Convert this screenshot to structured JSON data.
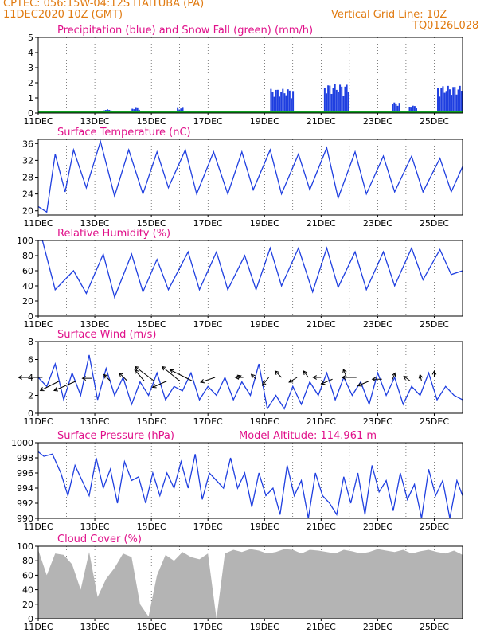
{
  "header": {
    "line1": "CPTEC:   056:15W-04:12S   ITAITUBA (PA)",
    "line2": "11DEC2020 10Z (GMT)",
    "grid_note": "Vertical Grid Line: 10Z",
    "code": "TQ0126L028"
  },
  "colors": {
    "orange": "#e07a10",
    "magenta": "#e0108a",
    "blue": "#1f3fe0",
    "green": "#10a020",
    "gray": "#b4b4b4"
  },
  "chart_data": [
    {
      "type": "bar",
      "title": "Precipitation (blue) and Snow Fall (green) (mm/h)",
      "ylim": [
        0,
        5
      ],
      "yticks": [
        0,
        1,
        2,
        3,
        4,
        5
      ],
      "xticks": [
        "11DEC",
        "13DEC",
        "15DEC",
        "17DEC",
        "19DEC",
        "21DEC",
        "23DEC",
        "25DEC"
      ],
      "series": [
        {
          "name": "Precipitation",
          "color": "blue",
          "bursts": [
            [
              2.3,
              2.6,
              0.25
            ],
            [
              3.3,
              3.6,
              0.35
            ],
            [
              4.9,
              5.1,
              0.35
            ],
            [
              8.2,
              9.0,
              1.6
            ],
            [
              10.1,
              11.0,
              1.9
            ],
            [
              12.5,
              12.8,
              0.7
            ],
            [
              13.1,
              13.4,
              0.5
            ],
            [
              14.1,
              15.0,
              1.8
            ]
          ]
        },
        {
          "name": "Snow Fall",
          "color": "green",
          "value": 0.08
        }
      ]
    },
    {
      "type": "line",
      "title": "Surface Temperature (nC)",
      "ylim": [
        19,
        37
      ],
      "yticks": [
        20,
        24,
        28,
        32,
        36
      ],
      "xticks": [
        "11DEC",
        "13DEC",
        "15DEC",
        "17DEC",
        "19DEC",
        "21DEC",
        "23DEC",
        "25DEC"
      ],
      "x_days": [
        0,
        0.3,
        0.6,
        0.95,
        1.25,
        1.7,
        2.2,
        2.7,
        3.2,
        3.7,
        4.2,
        4.6,
        5.2,
        5.6,
        6.2,
        6.7,
        7.2,
        7.6,
        8.2,
        8.6,
        9.2,
        9.6,
        10.2,
        10.6,
        11.2,
        11.6,
        12.2,
        12.6,
        13.2,
        13.6,
        14.2,
        14.6,
        15
      ],
      "values": [
        21,
        19.7,
        33.5,
        24.5,
        34.5,
        25.5,
        36.5,
        23.5,
        34.5,
        24,
        34,
        25.5,
        34.5,
        24,
        34,
        24,
        34,
        25,
        34.5,
        24,
        33.5,
        25,
        35,
        23,
        34,
        24,
        33,
        24.5,
        33,
        24.5,
        32.5,
        24.5,
        30.5
      ]
    },
    {
      "type": "line",
      "title": "Relative Humidity (%)",
      "ylim": [
        0,
        100
      ],
      "yticks": [
        0,
        20,
        40,
        60,
        80,
        100
      ],
      "xticks": [
        "11DEC",
        "13DEC",
        "15DEC",
        "17DEC",
        "19DEC",
        "21DEC",
        "23DEC",
        "25DEC"
      ],
      "x_days": [
        0,
        0.15,
        0.6,
        1.25,
        1.7,
        2.3,
        2.7,
        3.3,
        3.7,
        4.2,
        4.6,
        5.3,
        5.7,
        6.3,
        6.7,
        7.3,
        7.7,
        8.2,
        8.6,
        9.2,
        9.7,
        10.2,
        10.6,
        11.2,
        11.6,
        12.2,
        12.6,
        13.2,
        13.6,
        14.2,
        14.6,
        15
      ],
      "values": [
        100,
        100,
        35,
        60,
        30,
        82,
        25,
        82,
        32,
        75,
        35,
        85,
        35,
        85,
        35,
        80,
        35,
        90,
        40,
        90,
        32,
        90,
        38,
        85,
        35,
        85,
        40,
        90,
        48,
        88,
        55,
        60
      ]
    },
    {
      "type": "line",
      "title": "Surface Wind (m/s)",
      "ylim": [
        0,
        8
      ],
      "yticks": [
        0,
        2,
        4,
        6,
        8
      ],
      "xticks": [
        "11DEC",
        "13DEC",
        "15DEC",
        "17DEC",
        "19DEC",
        "21DEC",
        "23DEC",
        "25DEC"
      ],
      "x_days": [
        0,
        0.3,
        0.6,
        0.9,
        1.2,
        1.5,
        1.8,
        2.1,
        2.4,
        2.7,
        3.0,
        3.3,
        3.6,
        3.9,
        4.2,
        4.5,
        4.8,
        5.1,
        5.4,
        5.7,
        6.0,
        6.3,
        6.6,
        6.9,
        7.2,
        7.5,
        7.8,
        8.1,
        8.4,
        8.7,
        9.0,
        9.3,
        9.6,
        9.9,
        10.2,
        10.5,
        10.8,
        11.1,
        11.4,
        11.7,
        12.0,
        12.3,
        12.6,
        12.9,
        13.2,
        13.5,
        13.8,
        14.1,
        14.4,
        14.7,
        15
      ],
      "values": [
        4,
        3,
        5.5,
        1.5,
        4.5,
        2,
        6.5,
        1.5,
        5,
        2,
        4,
        1,
        3.5,
        2,
        4.5,
        1.5,
        3,
        2.5,
        4.5,
        1.5,
        3,
        2,
        4,
        1.5,
        3.5,
        2,
        5.5,
        0.5,
        2,
        0.5,
        3,
        1,
        3.5,
        2,
        4.5,
        1.5,
        4,
        2,
        3.5,
        1,
        4.5,
        2,
        4,
        1,
        3,
        2,
        4.5,
        1.5,
        3,
        2,
        1.5
      ],
      "arrows": [
        [
          0.15,
          4,
          -30,
          0
        ],
        [
          0.75,
          3.6,
          -24,
          12
        ],
        [
          1.35,
          3.6,
          -28,
          12
        ],
        [
          1.9,
          3.9,
          -12,
          0
        ],
        [
          2.55,
          3.6,
          -8,
          -8
        ],
        [
          3.15,
          3.6,
          -10,
          -10
        ],
        [
          3.75,
          3.6,
          -12,
          -14
        ],
        [
          4.1,
          3.6,
          -24,
          -18
        ],
        [
          4.55,
          3.6,
          -18,
          8
        ],
        [
          5.0,
          3.6,
          -22,
          -18
        ],
        [
          5.45,
          3.6,
          -28,
          -14
        ],
        [
          6.25,
          4.0,
          -18,
          6
        ],
        [
          7.0,
          4.0,
          6,
          -2
        ],
        [
          7.25,
          4.0,
          -10,
          0
        ],
        [
          7.7,
          3.8,
          -6,
          -6
        ],
        [
          8.15,
          4.0,
          -8,
          10
        ],
        [
          8.6,
          4.0,
          -8,
          -8
        ],
        [
          9.15,
          4.0,
          -10,
          6
        ],
        [
          9.55,
          4.0,
          -6,
          -8
        ],
        [
          10.0,
          4.0,
          -10,
          0
        ],
        [
          10.4,
          3.8,
          -14,
          6
        ],
        [
          10.9,
          4.0,
          -4,
          -10
        ],
        [
          11.25,
          4.0,
          -18,
          0
        ],
        [
          11.7,
          3.6,
          -14,
          6
        ],
        [
          12.15,
          3.8,
          -12,
          0
        ],
        [
          12.5,
          3.6,
          4,
          -10
        ],
        [
          13.15,
          3.6,
          -8,
          -6
        ],
        [
          13.55,
          3.6,
          -2,
          -8
        ],
        [
          14.0,
          4.0,
          0,
          -8
        ]
      ]
    },
    {
      "type": "line",
      "title": "Surface Pressure (hPa)",
      "annotation": "Model Altitude: 114.961  m",
      "ylim": [
        990,
        1000
      ],
      "yticks": [
        990,
        992,
        994,
        996,
        998,
        1000
      ],
      "xticks": [
        "11DEC",
        "13DEC",
        "15DEC",
        "17DEC",
        "19DEC",
        "21DEC",
        "23DEC",
        "25DEC"
      ],
      "x_days": [
        0,
        0.2,
        0.5,
        0.8,
        1.05,
        1.3,
        1.55,
        1.8,
        2.05,
        2.3,
        2.55,
        2.8,
        3.05,
        3.3,
        3.55,
        3.8,
        4.05,
        4.3,
        4.55,
        4.8,
        5.05,
        5.3,
        5.55,
        5.8,
        6.05,
        6.3,
        6.55,
        6.8,
        7.05,
        7.3,
        7.55,
        7.8,
        8.05,
        8.3,
        8.55,
        8.8,
        9.05,
        9.3,
        9.55,
        9.8,
        10.05,
        10.3,
        10.55,
        10.8,
        11.05,
        11.3,
        11.55,
        11.8,
        12.05,
        12.3,
        12.55,
        12.8,
        13.05,
        13.3,
        13.55,
        13.8,
        14.05,
        14.3,
        14.55,
        14.8,
        15
      ],
      "values": [
        998.8,
        998.2,
        998.5,
        996,
        993,
        997,
        995,
        993,
        998,
        994,
        996.5,
        992,
        997.5,
        995,
        995.5,
        992,
        996,
        993,
        996,
        994,
        997.5,
        994,
        998.5,
        992.5,
        996,
        995,
        994,
        998,
        994,
        996,
        991.5,
        996,
        993,
        994,
        990.5,
        997,
        993,
        995,
        990,
        996,
        993,
        992,
        990.5,
        995.5,
        992,
        996,
        990.5,
        997,
        993.5,
        995,
        991,
        996,
        992.5,
        994.5,
        990,
        996.5,
        993,
        995,
        990,
        995,
        993
      ]
    },
    {
      "type": "bar",
      "title": "Cloud Cover (%)",
      "ylim": [
        0,
        100
      ],
      "yticks": [
        0,
        20,
        40,
        60,
        80,
        100
      ],
      "xticks": [
        "11DEC",
        "13DEC",
        "15DEC",
        "17DEC",
        "19DEC",
        "21DEC",
        "23DEC",
        "25DEC"
      ],
      "x_days": [
        0,
        0.3,
        0.6,
        0.9,
        1.2,
        1.5,
        1.8,
        2.1,
        2.4,
        2.7,
        3.0,
        3.3,
        3.6,
        3.9,
        4.2,
        4.5,
        4.8,
        5.1,
        5.4,
        5.7,
        6.0,
        6.3,
        6.6,
        6.9,
        7.2,
        7.5,
        7.8,
        8.1,
        8.4,
        8.7,
        9.0,
        9.3,
        9.6,
        9.9,
        10.2,
        10.5,
        10.8,
        11.1,
        11.4,
        11.7,
        12.0,
        12.3,
        12.6,
        12.9,
        13.2,
        13.5,
        13.8,
        14.1,
        14.4,
        14.7,
        15
      ],
      "values": [
        95,
        60,
        90,
        88,
        75,
        40,
        92,
        30,
        55,
        70,
        90,
        85,
        20,
        3,
        60,
        88,
        80,
        92,
        85,
        82,
        90,
        0,
        90,
        95,
        92,
        96,
        94,
        90,
        92,
        96,
        95,
        90,
        95,
        94,
        92,
        90,
        95,
        93,
        90,
        92,
        96,
        94,
        92,
        95,
        90,
        93,
        95,
        92,
        90,
        94,
        88
      ]
    }
  ]
}
